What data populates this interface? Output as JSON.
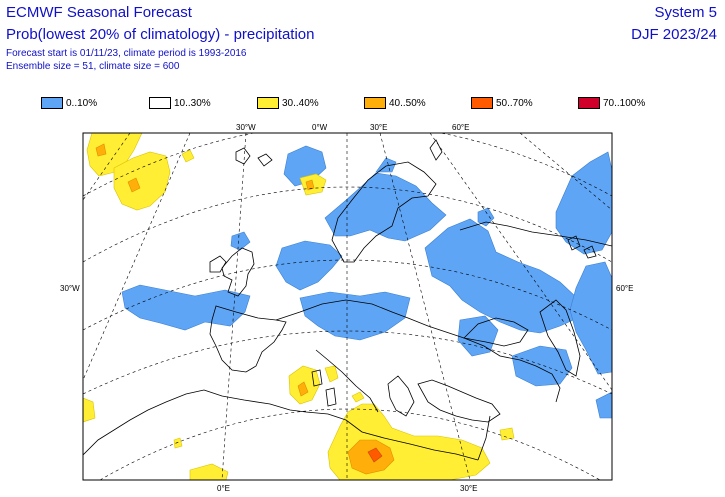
{
  "header": {
    "title": "ECMWF Seasonal Forecast",
    "subtitle": "Prob(lowest 20% of climatology) - precipitation",
    "forecast_line": "Forecast start is 01/11/23, climate period is 1993-2016",
    "ensemble_line": "Ensemble size = 51, climate size = 600",
    "system": "System 5",
    "season": "DJF 2023/24"
  },
  "legend": [
    {
      "label": "0..10%",
      "color": "#5fa5f5"
    },
    {
      "label": "10..30%",
      "color": "#ffffff"
    },
    {
      "label": "30..40%",
      "color": "#ffee33"
    },
    {
      "label": "40..50%",
      "color": "#ffae0a"
    },
    {
      "label": "50..70%",
      "color": "#ff5a00"
    },
    {
      "label": "70..100%",
      "color": "#d0002a"
    }
  ],
  "map": {
    "top_ticks": [
      "30°W",
      "0°W",
      "30°E",
      "60°E"
    ],
    "side_ticks": [
      "30°W",
      "60°E"
    ],
    "bottom_ticks": [
      "0°E",
      "30°E"
    ]
  }
}
